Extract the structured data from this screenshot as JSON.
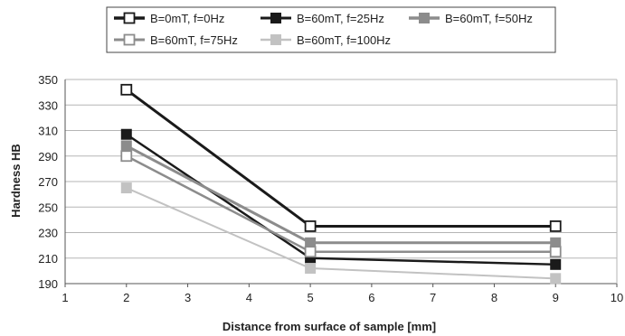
{
  "chart_data": {
    "type": "line",
    "xlabel": "Distance from surface of sample [mm]",
    "ylabel": "Hardness HB",
    "xlim": [
      1,
      10
    ],
    "ylim": [
      190,
      350
    ],
    "x_ticks": [
      1,
      2,
      3,
      4,
      5,
      6,
      7,
      8,
      9,
      10
    ],
    "y_ticks": [
      190,
      210,
      230,
      250,
      270,
      290,
      310,
      330,
      350
    ],
    "grid": "horizontal",
    "legend_position": "top",
    "series": [
      {
        "name": "B=0mT, f=0Hz",
        "color": "#1a1a1a",
        "marker": "open-square",
        "line_width": 3,
        "x": [
          2,
          5,
          9
        ],
        "y": [
          342,
          235,
          235
        ]
      },
      {
        "name": "B=60mT, f=25Hz",
        "color": "#1a1a1a",
        "marker": "filled-square",
        "line_width": 2.5,
        "x": [
          2,
          5,
          9
        ],
        "y": [
          307,
          210,
          205
        ]
      },
      {
        "name": "B=60mT, f=50Hz",
        "color": "#8c8c8c",
        "marker": "filled-square",
        "line_width": 3,
        "x": [
          2,
          5,
          9
        ],
        "y": [
          298,
          222,
          222
        ]
      },
      {
        "name": "B=60mT, f=75Hz",
        "color": "#8c8c8c",
        "marker": "open-square",
        "line_width": 2.5,
        "x": [
          2,
          5,
          9
        ],
        "y": [
          290,
          215,
          215
        ]
      },
      {
        "name": "B=60mT, f=100Hz",
        "color": "#c2c2c2",
        "marker": "filled-square",
        "line_width": 2,
        "x": [
          2,
          5,
          9
        ],
        "y": [
          265,
          202,
          194
        ]
      }
    ]
  }
}
